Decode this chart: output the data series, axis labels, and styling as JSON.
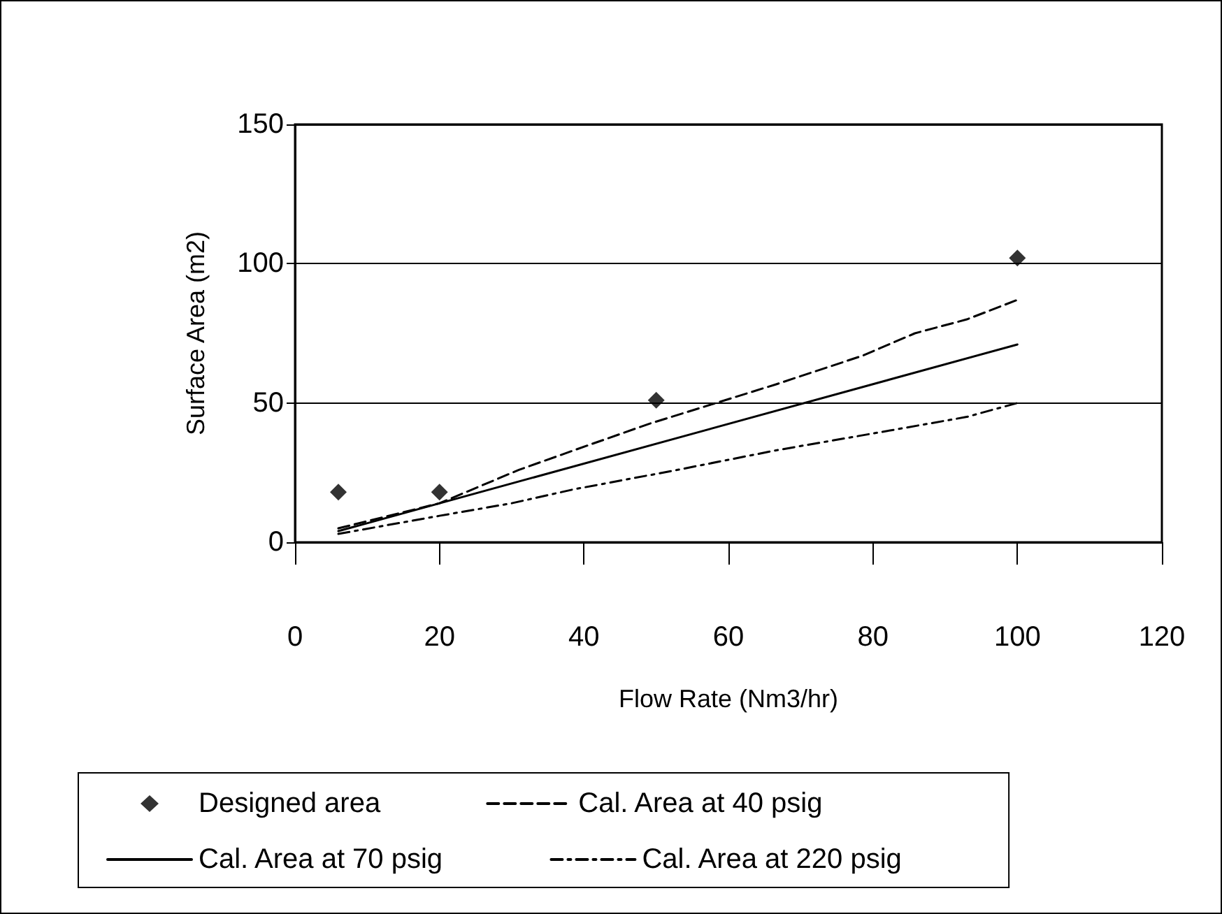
{
  "chart_data": {
    "type": "line",
    "xlabel": "Flow Rate (Nm3/hr)",
    "ylabel": "Surface Area (m2)",
    "xlim": [
      0,
      120
    ],
    "xticks": [
      0,
      20,
      40,
      60,
      80,
      100,
      120
    ],
    "ylim": [
      0,
      150
    ],
    "yticks": [
      0,
      50,
      100,
      150
    ],
    "grid": "y",
    "legend": "bottom",
    "series": [
      {
        "name": "Designed area",
        "type": "scatter",
        "marker": "diamond",
        "color": "#000000",
        "x": [
          6,
          20,
          50,
          100
        ],
        "values": [
          18,
          18,
          51,
          102
        ]
      },
      {
        "name": "Cal. Area at 40 psig",
        "marker": "none",
        "line_style": "dashed",
        "color": "#000000",
        "x": [
          6,
          20,
          31,
          38.6,
          49,
          57.8,
          66.6,
          78.6,
          85.8,
          93,
          100
        ],
        "values": [
          5,
          14,
          26,
          33,
          42.5,
          49.6,
          56.7,
          67,
          75,
          80,
          87
        ]
      },
      {
        "name": "Cal. Area at 70 psig",
        "marker": "none",
        "line_style": "solid",
        "color": "#000000",
        "x": [
          6,
          100
        ],
        "values": [
          4,
          71
        ]
      },
      {
        "name": "Cal. Area at 220 psig",
        "marker": "none",
        "line_style": "dashdot",
        "color": "#000000",
        "x": [
          6,
          20,
          30,
          38.6,
          53,
          66.6,
          81,
          93,
          100
        ],
        "values": [
          3,
          9.5,
          14,
          19,
          26,
          33,
          39.5,
          45,
          50
        ]
      }
    ]
  }
}
